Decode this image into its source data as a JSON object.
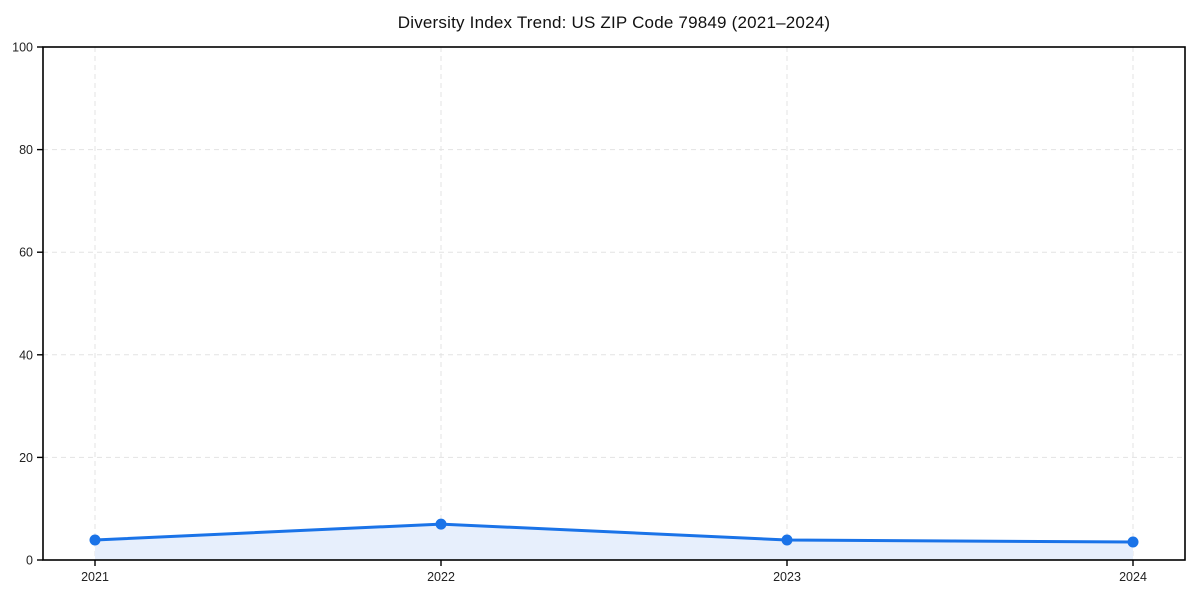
{
  "chart_data": {
    "type": "line",
    "title": "Diversity Index Trend: US ZIP Code 79849 (2021–2024)",
    "x": [
      2021,
      2022,
      2023,
      2024
    ],
    "x_tick_labels": [
      "2021",
      "2022",
      "2023",
      "2024"
    ],
    "series": [
      {
        "name": "Diversity Index",
        "values": [
          3.9,
          7.0,
          3.9,
          3.5
        ]
      }
    ],
    "xlabel": "",
    "ylabel": "",
    "ylim": [
      0,
      100
    ],
    "yticks": [
      0,
      20,
      40,
      60,
      80,
      100
    ],
    "grid": "on",
    "grid_style": "dashed",
    "legend_position": "none",
    "marker": "circle",
    "area_fill": true,
    "colors": {
      "line": "#1a73e8",
      "marker": "#1a73e8",
      "area_fill": "#e7effc",
      "grid": "#e3e3e3",
      "axis": "#000000",
      "tick_text": "#222222",
      "title_text": "#111111",
      "background": "#ffffff"
    }
  }
}
